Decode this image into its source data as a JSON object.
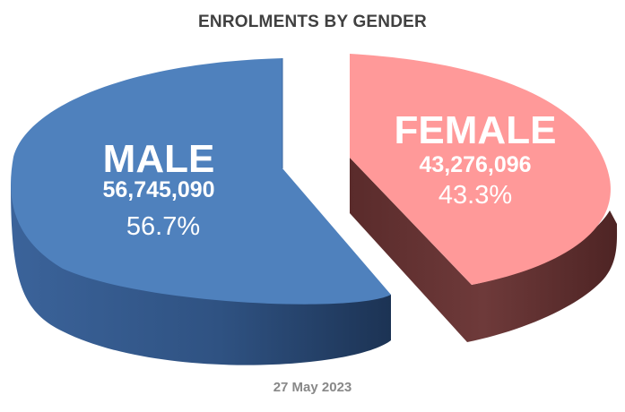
{
  "title": "ENROLMENTS BY GENDER",
  "date": "27 May 2023",
  "chart_data": {
    "type": "pie",
    "style": "3d-exploded",
    "title": "ENROLMENTS BY GENDER",
    "categories": [
      "MALE",
      "FEMALE"
    ],
    "values": [
      56745090,
      43276096
    ],
    "percent": [
      56.7,
      43.3
    ],
    "slices": [
      {
        "label": "MALE",
        "value_text": "56,745,090",
        "percent_text": "56.7%",
        "color": "#4f81bd",
        "side_color": "#2e4f7a"
      },
      {
        "label": "FEMALE",
        "value_text": "43,276,096",
        "percent_text": "43.3%",
        "color": "#ff9999",
        "side_color": "#6b3636"
      }
    ],
    "footnote": "27 May 2023"
  }
}
